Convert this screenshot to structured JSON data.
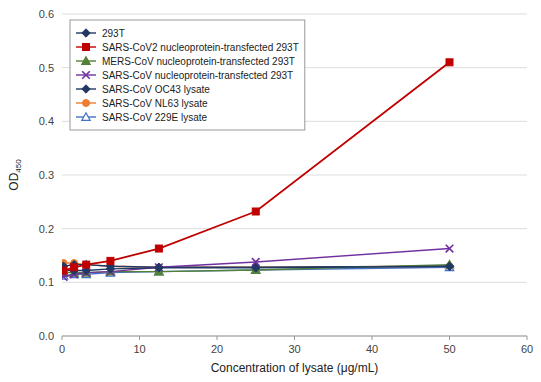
{
  "chart_data": {
    "type": "line",
    "xlabel": "Concentration of lysate (μg/mL)",
    "ylabel": "OD450",
    "x": [
      0.195,
      1.5625,
      3.125,
      6.25,
      12.5,
      25.0,
      50.0
    ],
    "series": [
      {
        "name": "293T",
        "color": "#1f3864",
        "marker": "diamond",
        "line_style": "solid",
        "values": [
          0.122,
          0.122,
          0.122,
          0.125,
          0.127,
          0.127,
          0.13
        ]
      },
      {
        "name": "SARS-CoV2 nucleoprotein-transfected 293T",
        "color": "#c00000",
        "marker": "square",
        "line_style": "solid",
        "values": [
          0.122,
          0.128,
          0.133,
          0.14,
          0.163,
          0.232,
          0.51
        ]
      },
      {
        "name": "MERS-CoV nucleoprotein-transfected 293T",
        "color": "#548235",
        "marker": "triangle",
        "line_style": "solid",
        "values": [
          0.118,
          0.118,
          0.118,
          0.12,
          0.12,
          0.123,
          0.133
        ]
      },
      {
        "name": "SARS-CoV nucleoprotein-transfected 293T",
        "color": "#7030a0",
        "marker": "x",
        "line_style": "solid",
        "values": [
          0.11,
          0.115,
          0.118,
          0.12,
          0.128,
          0.138,
          0.163
        ]
      },
      {
        "name": "SARS-CoV OC43 lysate",
        "color": "#1f3864",
        "marker": "diamond",
        "line_style": "solid",
        "values": [
          0.13,
          0.133,
          0.133,
          0.13,
          0.128,
          0.128,
          0.13
        ]
      },
      {
        "name": "SARS-CoV NL63 lysate",
        "color": "#ed7d31",
        "marker": "circle",
        "line_style": "solid",
        "values": [
          0.136,
          0.136,
          0.133,
          0.13,
          0.128,
          0.128,
          0.13
        ]
      },
      {
        "name": "SARS-CoV 229E lysate",
        "color": "#4472c4",
        "marker": "triangle-open",
        "line_style": "solid",
        "values": [
          0.112,
          0.115,
          0.115,
          0.118,
          0.12,
          0.123,
          0.128
        ]
      }
    ],
    "xlim": [
      0,
      60
    ],
    "ylim": [
      0,
      0.6
    ],
    "xticks": [
      0,
      10,
      20,
      30,
      40,
      50,
      60
    ],
    "yticks": [
      {
        "value": 0,
        "label": "0.0"
      },
      0.1,
      0.2,
      0.3,
      0.4,
      0.5,
      0.6
    ],
    "grid": true,
    "legend": "upper left"
  }
}
